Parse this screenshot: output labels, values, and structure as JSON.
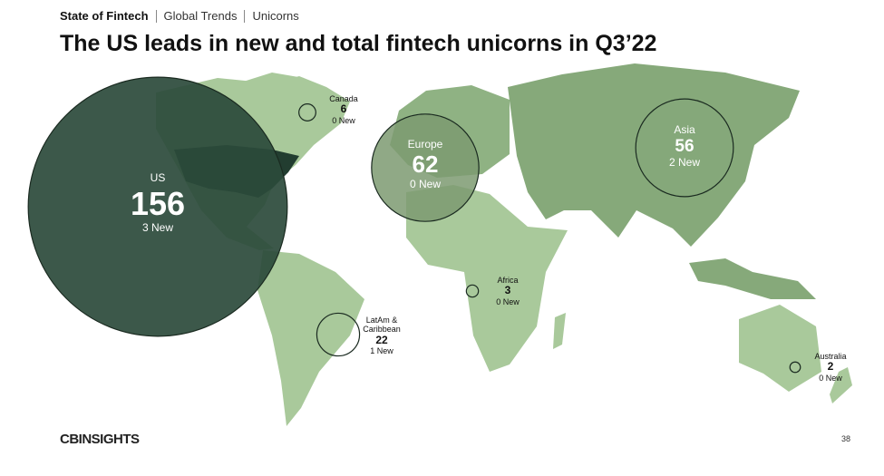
{
  "header": {
    "breadcrumb": [
      "State of Fintech",
      "Global Trends",
      "Unicorns"
    ],
    "title": "The US leads in new and total fintech unicorns in Q3’22"
  },
  "regions": [
    {
      "name": "US",
      "total": 156,
      "new": 3,
      "new_label": "3 New"
    },
    {
      "name": "Canada",
      "total": 6,
      "new": 0,
      "new_label": "0 New"
    },
    {
      "name": "Europe",
      "total": 62,
      "new": 0,
      "new_label": "0 New"
    },
    {
      "name": "Asia",
      "total": 56,
      "new": 2,
      "new_label": "2 New"
    },
    {
      "name": "LatAm & Caribbean",
      "total": 22,
      "new": 1,
      "new_label": "1 New"
    },
    {
      "name": "Africa",
      "total": 3,
      "new": 0,
      "new_label": "0 New"
    },
    {
      "name": "Australia",
      "total": 2,
      "new": 0,
      "new_label": "0 New"
    }
  ],
  "footer": {
    "logo": "CBINSIGHTS",
    "page": "38"
  }
}
